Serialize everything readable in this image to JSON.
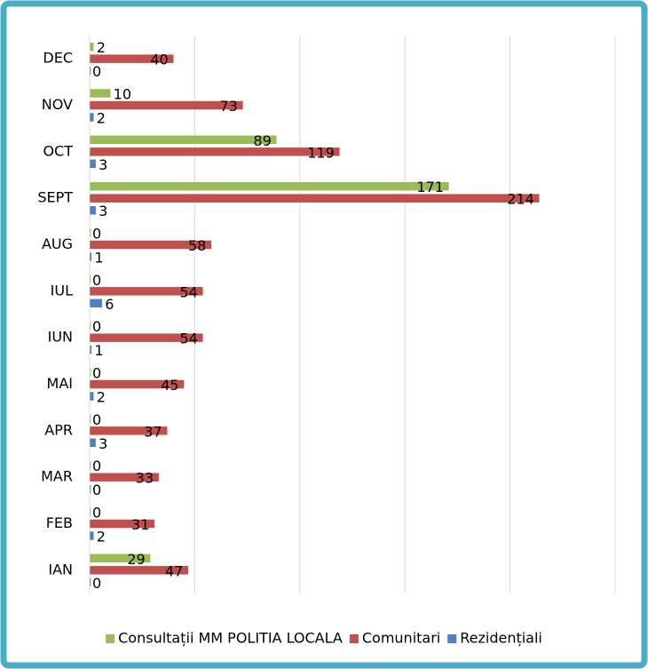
{
  "chart_data": {
    "type": "bar",
    "orientation": "horizontal",
    "categories": [
      "DEC",
      "NOV",
      "OCT",
      "SEPT",
      "AUG",
      "IUL",
      "IUN",
      "MAI",
      "APR",
      "MAR",
      "FEB",
      "IAN"
    ],
    "series": [
      {
        "name": "Consultații MM POLITIA LOCALA",
        "color": "#9bbb59",
        "values": [
          2,
          10,
          89,
          171,
          0,
          0,
          0,
          0,
          0,
          0,
          0,
          29
        ]
      },
      {
        "name": "Comunitari",
        "color": "#c0504d",
        "values": [
          40,
          73,
          119,
          214,
          58,
          54,
          54,
          45,
          37,
          33,
          31,
          47
        ]
      },
      {
        "name": "Rezidențiali",
        "color": "#4f81bd",
        "values": [
          0,
          2,
          3,
          3,
          1,
          6,
          1,
          2,
          3,
          0,
          2,
          0
        ]
      }
    ],
    "xlim": [
      0,
      250
    ],
    "xticks": [
      0,
      50,
      100,
      150,
      200,
      250
    ],
    "grid": true,
    "legend": "bottom"
  }
}
